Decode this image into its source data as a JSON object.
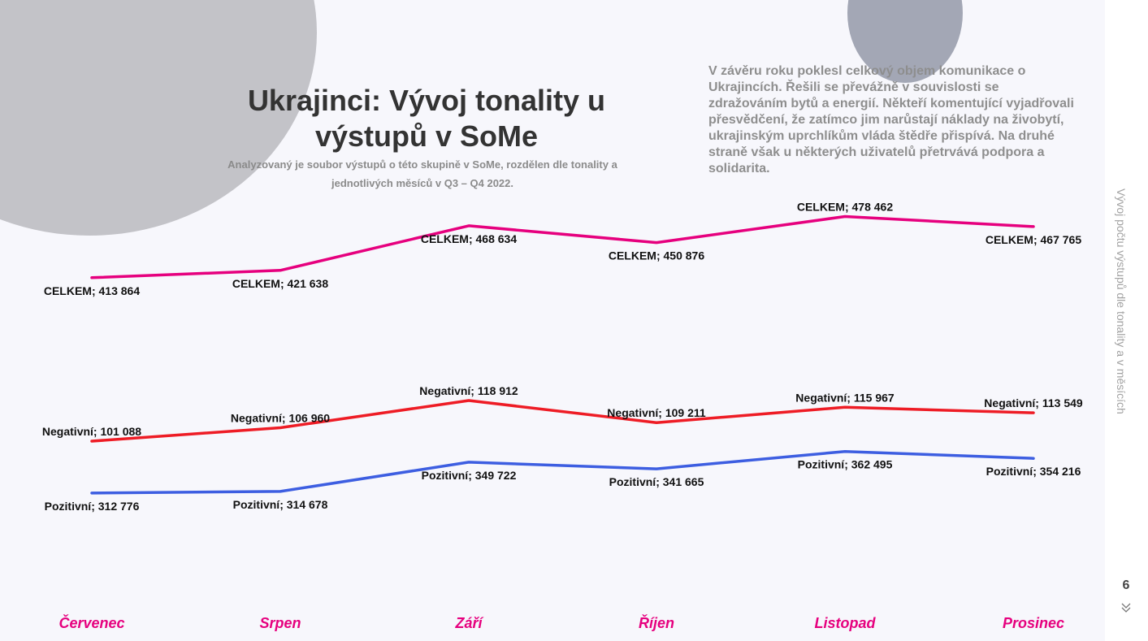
{
  "page": {
    "title": "Ukrajinci: Vývoj tonality u výstupů v SoMe",
    "subtitle": "Analyzovaný je soubor výstupů o této skupině v SoMe, rozdělen dle tonality a jednotlivých měsíců v Q3 – Q4 2022.",
    "description": "V závěru roku poklesl celkový objem komunikace o Ukrajincích. Řešili se převážně v souvislosti se zdražováním bytů a energií. Někteří komentující vyjadřovali přesvědčení, že zatímco jim narůstají náklady na živobytí, ukrajinským uprchlíkům vláda štědře přispívá. Na druhé straně však u některých uživatelů přetrvává podpora a solidarita.",
    "side_title": "Vývoj počtu výstupů dle tonality a v měsících",
    "page_number": "6",
    "nav_icon": "double-chevron-down-icon"
  },
  "chart_data": {
    "type": "line",
    "categories": [
      "Červenec",
      "Srpen",
      "Září",
      "Říjen",
      "Listopad",
      "Prosinec"
    ],
    "series": [
      {
        "name": "CELKEM",
        "color": "#e6007e",
        "values": [
          413864,
          421638,
          468634,
          450876,
          478462,
          467765
        ],
        "labels": [
          "413 864",
          "421 638",
          "468 634",
          "450 876",
          "478 462",
          "467 765"
        ]
      },
      {
        "name": "Negativní",
        "color": "#ee1c25",
        "values": [
          101088,
          106960,
          118912,
          109211,
          115967,
          113549
        ],
        "labels": [
          "101 088",
          "106 960",
          "118 912",
          "109 211",
          "115 967",
          "113 549"
        ]
      },
      {
        "name": "Pozitivní",
        "color": "#3d5ee1",
        "values": [
          312776,
          314678,
          349722,
          341665,
          362495,
          354216
        ],
        "labels": [
          "312 776",
          "314 678",
          "349 722",
          "341 665",
          "362 495",
          "354 216"
        ]
      }
    ],
    "colors": {
      "category_labels": "#e6007e",
      "data_labels": "#111111"
    }
  }
}
